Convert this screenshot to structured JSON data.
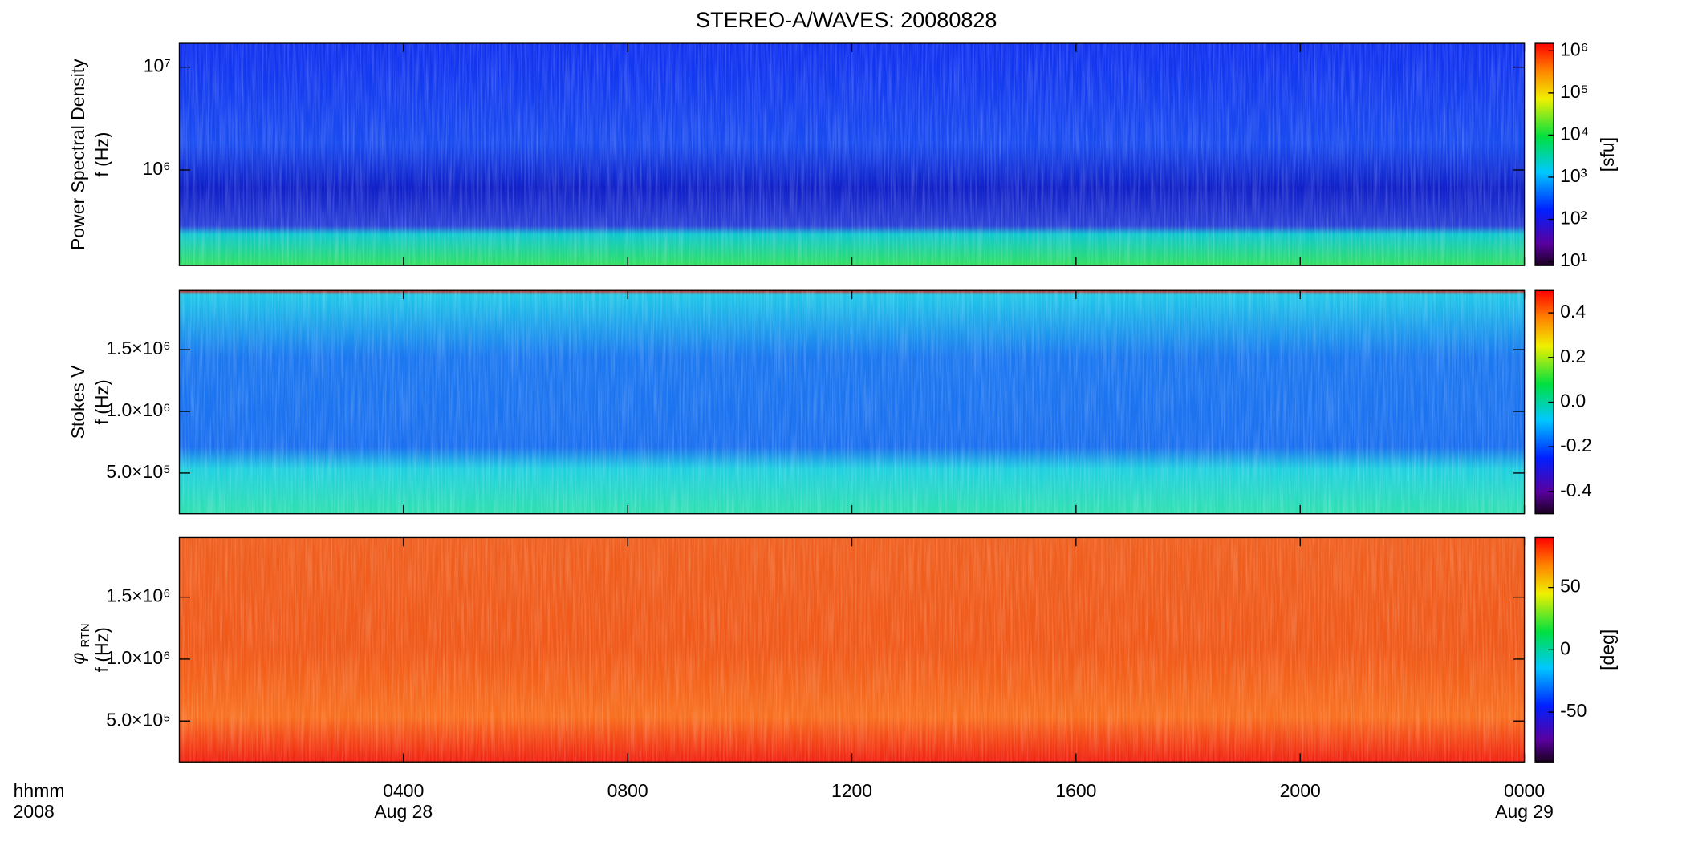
{
  "title": "STEREO-A/WAVES: 20080828",
  "x_axis": {
    "xlim": [
      0,
      24
    ],
    "xticks": [
      {
        "value": 4,
        "label": "0400"
      },
      {
        "value": 8,
        "label": "0800"
      },
      {
        "value": 12,
        "label": "1200"
      },
      {
        "value": 16,
        "label": "1600"
      },
      {
        "value": 20,
        "label": "2000"
      },
      {
        "value": 24,
        "label": "0000"
      }
    ],
    "xtick_dates": [
      "Aug 28",
      null,
      null,
      null,
      null,
      "Aug 29"
    ],
    "time_label": "hhmm",
    "year_label": "2008"
  },
  "chart_data": [
    {
      "type": "spectrogram",
      "ylabel": "Power Spectral Density",
      "yunit": "f (Hz)",
      "ylog": true,
      "ylim": [
        118000,
        17000000
      ],
      "yticks": [
        {
          "value": 1000000,
          "label": "10⁶"
        },
        {
          "value": 10000000,
          "label": "10⁷"
        }
      ],
      "colormap": "rainbow",
      "clog": true,
      "clim": [
        8,
        1500000
      ],
      "cticks": [
        {
          "value": 10,
          "label": "10¹"
        },
        {
          "value": 100,
          "label": "10²"
        },
        {
          "value": 1000,
          "label": "10³"
        },
        {
          "value": 10000,
          "label": "10⁴"
        },
        {
          "value": 100000,
          "label": "10⁵"
        },
        {
          "value": 1000000,
          "label": "10⁶"
        }
      ],
      "clabel": "[sfu]"
    },
    {
      "type": "spectrogram",
      "ylabel": "Stokes V",
      "yunit": "f (Hz)",
      "ylog": false,
      "ylim": [
        170000,
        1980000
      ],
      "yticks": [
        {
          "value": 500000,
          "label": "5.0×10⁵"
        },
        {
          "value": 1000000,
          "label": "1.0×10⁶"
        },
        {
          "value": 1500000,
          "label": "1.5×10⁶"
        }
      ],
      "colormap": "rainbow",
      "clog": false,
      "clim": [
        -0.5,
        0.5
      ],
      "cticks": [
        {
          "value": -0.4,
          "label": "-0.4"
        },
        {
          "value": -0.2,
          "label": "-0.2"
        },
        {
          "value": 0,
          "label": "0.0"
        },
        {
          "value": 0.2,
          "label": "0.2"
        },
        {
          "value": 0.4,
          "label": "0.4"
        }
      ]
    },
    {
      "type": "spectrogram",
      "ylabel": "φ",
      "ylabel_sub": "RTN",
      "yunit": "f (Hz)",
      "ylog": false,
      "ylim": [
        170000,
        1980000
      ],
      "yticks": [
        {
          "value": 500000,
          "label": "5.0×10⁵"
        },
        {
          "value": 1000000,
          "label": "1.0×10⁶"
        },
        {
          "value": 1500000,
          "label": "1.5×10⁶"
        }
      ],
      "colormap": "rainbow",
      "clog": false,
      "clim": [
        -90,
        90
      ],
      "cticks": [
        -50,
        0,
        50
      ],
      "clabel": "[deg]"
    }
  ]
}
